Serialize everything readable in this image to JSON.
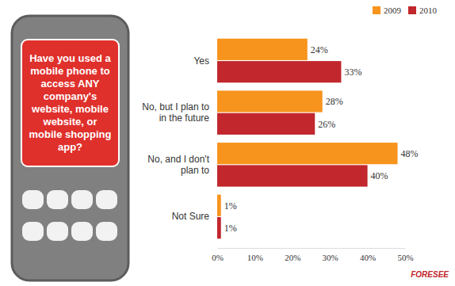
{
  "chart_data": {
    "type": "bar",
    "orientation": "horizontal",
    "title": "Have you used a mobile phone to access ANY company's website, mobile website, or mobile shopping app?",
    "categories": [
      "Yes",
      "No, but I plan to in the future",
      "No, and I don't plan to",
      "Not Sure"
    ],
    "series": [
      {
        "name": "2009",
        "color": "#f7941d",
        "values": [
          24,
          28,
          48,
          1
        ],
        "value_labels": [
          "24%",
          "28%",
          "48%",
          "1%"
        ]
      },
      {
        "name": "2010",
        "color": "#c1272d",
        "values": [
          33,
          26,
          40,
          1
        ],
        "value_labels": [
          "33%",
          "26%",
          "40%",
          "1%"
        ]
      }
    ],
    "xlim": [
      0,
      50
    ],
    "xticks": [
      {
        "value": 0,
        "label": "0%"
      },
      {
        "value": 10,
        "label": "10%"
      },
      {
        "value": 20,
        "label": "20%"
      },
      {
        "value": 30,
        "label": "30%"
      },
      {
        "value": 40,
        "label": "40%"
      },
      {
        "value": 50,
        "label": "50%"
      }
    ],
    "data_labels": true,
    "legend": "top-right",
    "grid": false,
    "annotations": [
      "FORESEE"
    ]
  }
}
